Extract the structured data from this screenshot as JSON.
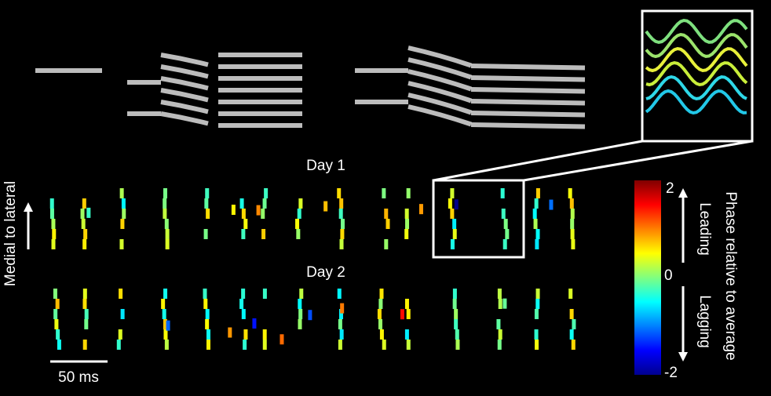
{
  "day_labels": [
    "Day 1",
    "Day 2"
  ],
  "y_axis_label": "Medial to lateral",
  "scale_bar_label": "50 ms",
  "colorbar": {
    "title": "Phase relative to average",
    "ticks": [
      "2",
      "0",
      "-2"
    ],
    "leading": "Leading",
    "lagging": "Lagging"
  }
}
